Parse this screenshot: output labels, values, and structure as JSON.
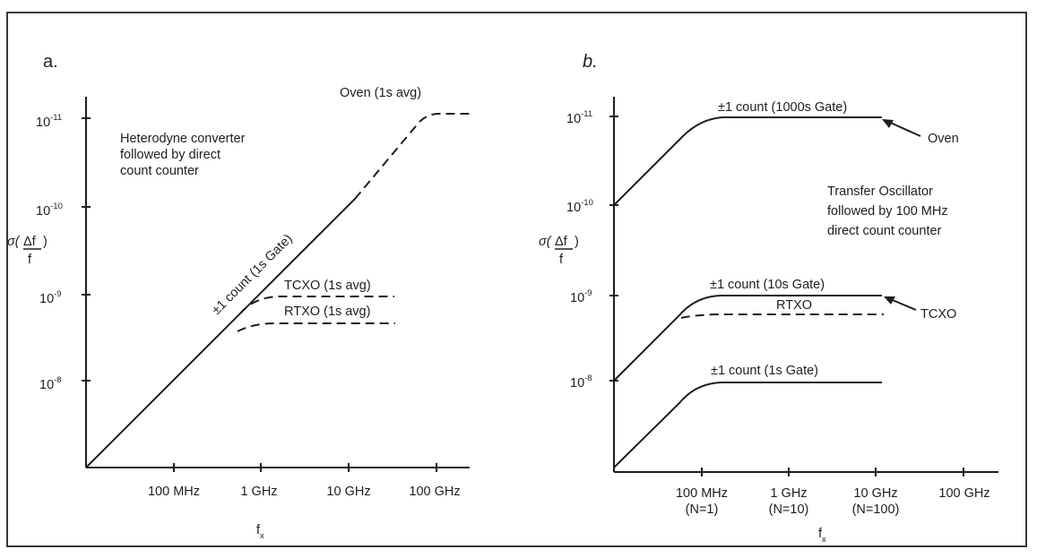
{
  "chart_data": [
    {
      "panel_label": "a.",
      "type": "line",
      "y_scale": "log",
      "y_axis_label": {
        "sigma": "σ(",
        "delta_f": "Δf",
        "close": ")",
        "denominator": "f"
      },
      "y_ticks": [
        {
          "value": 1e-08,
          "mantissa": "10",
          "exponent": "-8"
        },
        {
          "value": 1e-09,
          "mantissa": "10",
          "exponent": "-9"
        },
        {
          "value": 1e-10,
          "mantissa": "10",
          "exponent": "-10"
        },
        {
          "value": 1e-11,
          "mantissa": "10",
          "exponent": "-11"
        }
      ],
      "x_scale": "log",
      "x_ticks": [
        "100 MHz",
        "1 GHz",
        "10 GHz",
        "100 GHz"
      ],
      "x_axis_label": {
        "main": "f",
        "sub": "x"
      },
      "x_range_decades": [
        -3,
        1.4
      ],
      "y_range_decades": [
        -1.1,
        3.3
      ],
      "description_text": [
        "Heterodyne converter",
        "followed by direct",
        "count counter"
      ],
      "series": [
        {
          "name": "±1 count (1s Gate)",
          "style": "solid",
          "points": [
            [
              -3,
              -1.05
            ],
            [
              1.05,
              3.05
            ]
          ]
        },
        {
          "name": "Oven (1s avg)",
          "style": "dashed",
          "segments": [
            [
              [
                1.05,
                3.05
              ],
              [
                1.75,
                3.05
              ]
            ],
            [
              [
                0.55,
                2.55
              ],
              [
                0.95,
                2.95
              ],
              [
                1.05,
                3.05
              ]
            ]
          ]
        },
        {
          "name": "TCXO (1s avg)",
          "style": "dashed",
          "points": [
            [
              -0.55,
              0.95
            ],
            [
              -0.4,
              1.02
            ],
            [
              -0.2,
              1.06
            ],
            [
              1.45,
              1.06
            ]
          ]
        },
        {
          "name": "RTXO (1s avg)",
          "style": "dashed",
          "points": [
            [
              -0.6,
              0.9
            ],
            [
              -0.45,
              0.96
            ],
            [
              -0.25,
              0.98
            ],
            [
              1.35,
              0.98
            ]
          ]
        }
      ],
      "annotations": [
        "Oven (1s avg)",
        "±1 count (1s Gate)",
        "TCXO (1s avg)",
        "RTXO (1s avg)"
      ]
    },
    {
      "panel_label": "b.",
      "type": "line",
      "y_scale": "log",
      "y_axis_label": {
        "sigma": "σ(",
        "delta_f": "Δf",
        "close": ")",
        "denominator": "f"
      },
      "y_ticks": [
        {
          "value": 1e-08,
          "mantissa": "10",
          "exponent": "-8"
        },
        {
          "value": 1e-09,
          "mantissa": "10",
          "exponent": "-9"
        },
        {
          "value": 1e-10,
          "mantissa": "10",
          "exponent": "-10"
        },
        {
          "value": 1e-11,
          "mantissa": "10",
          "exponent": "-11"
        }
      ],
      "x_scale": "log",
      "x_ticks": [
        "100 MHz",
        "1 GHz",
        "10 GHz",
        "100 GHz"
      ],
      "x_tick_sublabels": [
        "(N=1)",
        "(N=10)",
        "(N=100)",
        ""
      ],
      "x_axis_label": {
        "main": "f",
        "sub": "x"
      },
      "description_text": [
        "Transfer Oscillator",
        "followed by 100 MHz",
        "direct count counter"
      ],
      "series": [
        {
          "name": "±1 count (1000s Gate)",
          "style": "solid",
          "from": [
            -1,
            -8
          ],
          "knee_start": -0.2,
          "plateau": -11,
          "to": 1.1
        },
        {
          "name": "±1 count (10s Gate)",
          "style": "solid",
          "from": [
            -1,
            -6
          ],
          "knee_start": -0.2,
          "plateau": -9,
          "to": 1.1
        },
        {
          "name": "±1 count (1s Gate)",
          "style": "solid",
          "from": [
            -1,
            -5
          ],
          "knee_start": -0.2,
          "plateau": -8,
          "to": 1.1
        },
        {
          "name": "RTXO",
          "style": "dashed",
          "from": [
            -0.25,
            -8.82
          ],
          "plateau": -8.8,
          "to": 1.1
        }
      ],
      "annotations": [
        "±1 count (1000s Gate)",
        "Oven",
        "±1 count (10s Gate)",
        "RTXO",
        "TCXO",
        "±1 count (1s Gate)"
      ]
    }
  ]
}
